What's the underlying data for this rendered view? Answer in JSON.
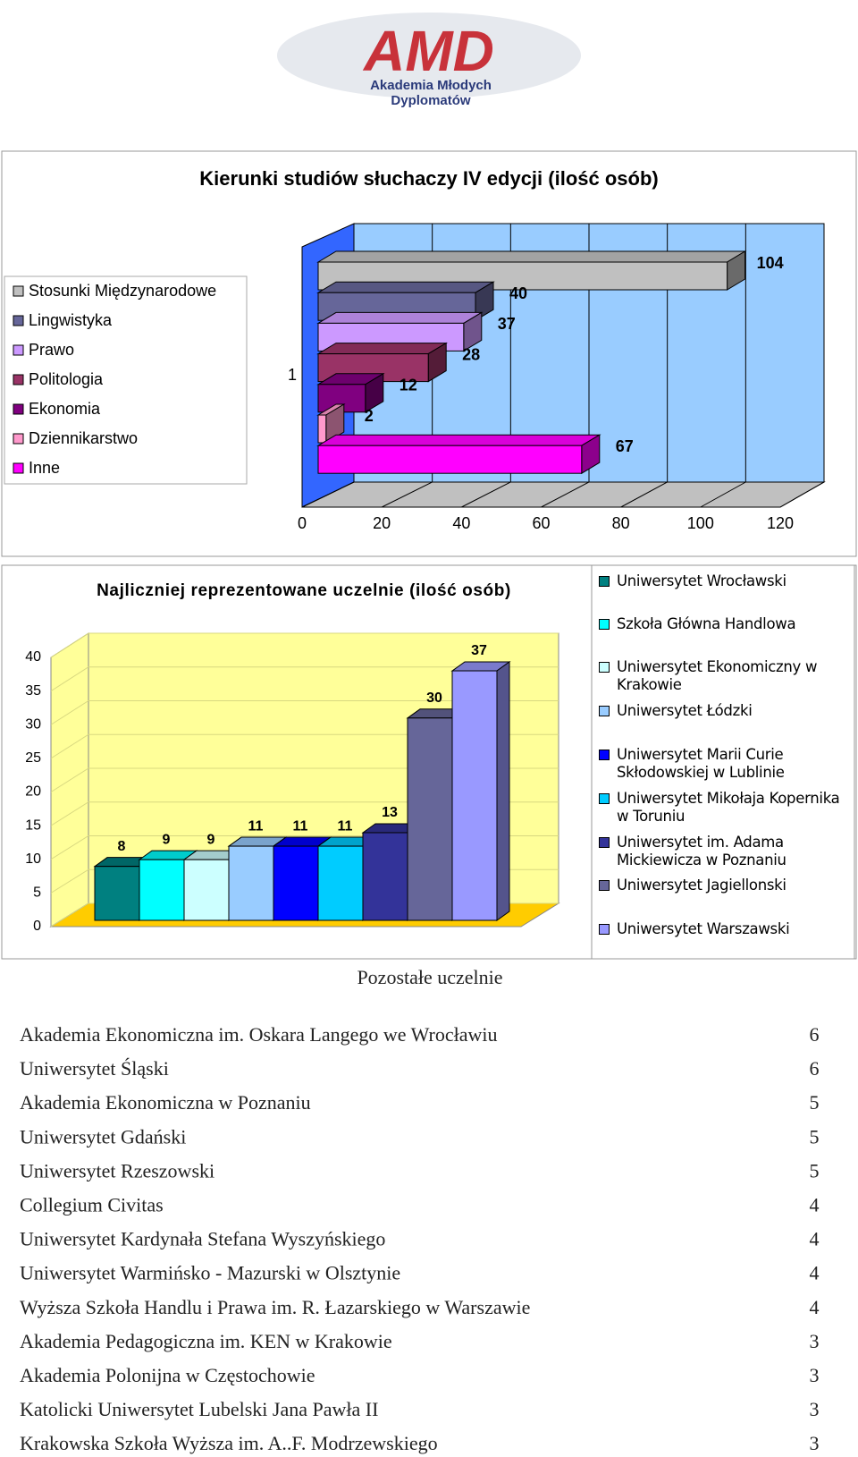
{
  "header": {
    "logo": "AMD",
    "logo_subtitle_1": "Akademia Młodych",
    "logo_subtitle_2": "Dyplomatów"
  },
  "chart_data": [
    {
      "type": "bar",
      "orientation": "horizontal",
      "title": "Kierunki studiów słuchaczy IV edycji (ilość osób)",
      "categories": [
        "1"
      ],
      "series": [
        {
          "name": "Stosunki Międzynarodowe",
          "color": "#c0c0c0",
          "values": [
            104
          ]
        },
        {
          "name": "Lingwistyka",
          "color": "#666699",
          "values": [
            40
          ]
        },
        {
          "name": "Prawo",
          "color": "#cc99ff",
          "values": [
            37
          ]
        },
        {
          "name": "Politologia",
          "color": "#993366",
          "values": [
            28
          ]
        },
        {
          "name": "Ekonomia",
          "color": "#800080",
          "values": [
            12
          ]
        },
        {
          "name": "Dziennikarstwo",
          "color": "#ff99cc",
          "values": [
            2
          ]
        },
        {
          "name": "Inne",
          "color": "#ff00ff",
          "values": [
            67
          ]
        }
      ],
      "xlim": [
        0,
        120
      ],
      "xticks": [
        0,
        20,
        40,
        60,
        80,
        100,
        120
      ],
      "grid": true,
      "legend": "left"
    },
    {
      "type": "bar",
      "orientation": "vertical",
      "title": "Najliczniej reprezentowane uczelnie (ilość osób)",
      "series": [
        {
          "name": "Uniwersytet Wrocławski",
          "color": "#008080",
          "values": [
            8
          ]
        },
        {
          "name": "Szkoła Główna Handlowa",
          "color": "#00ffff",
          "values": [
            9
          ]
        },
        {
          "name": "Uniwersytet Ekonomiczny w Krakowie",
          "color": "#ccffff",
          "values": [
            9
          ]
        },
        {
          "name": "Uniwersytet Łódzki",
          "color": "#99ccff",
          "values": [
            11
          ]
        },
        {
          "name": "Uniwersytet Marii Curie Skłodowskiej w Lublinie",
          "color": "#0000ff",
          "values": [
            11
          ]
        },
        {
          "name": "Uniwersytet Mikołaja Kopernika w Toruniu",
          "color": "#00ccff",
          "values": [
            11
          ]
        },
        {
          "name": "Uniwersytet im. Adama Mickiewicza w Poznaniu",
          "color": "#333399",
          "values": [
            13
          ]
        },
        {
          "name": "Uniwersytet Jagiellonski",
          "color": "#666699",
          "values": [
            30
          ]
        },
        {
          "name": "Uniwersytet Warszawski",
          "color": "#9999ff",
          "values": [
            37
          ]
        }
      ],
      "ylim": [
        0,
        40
      ],
      "yticks": [
        0,
        5,
        10,
        15,
        20,
        25,
        30,
        35,
        40
      ],
      "grid": true,
      "legend": "right"
    }
  ],
  "table": {
    "title": "Pozostałe uczelnie",
    "rows": [
      [
        "Akademia Ekonomiczna im. Oskara Langego we Wrocławiu",
        6
      ],
      [
        "Uniwersytet Śląski",
        6
      ],
      [
        "Akademia Ekonomiczna w Poznaniu",
        5
      ],
      [
        "Uniwersytet Gdański",
        5
      ],
      [
        "Uniwersytet Rzeszowski",
        5
      ],
      [
        "Collegium Civitas",
        4
      ],
      [
        "Uniwersytet Kardynała Stefana Wyszyńskiego",
        4
      ],
      [
        "Uniwersytet Warmińsko - Mazurski w Olsztynie",
        4
      ],
      [
        "Wyższa Szkoła Handlu i Prawa im. R. Łazarskiego w Warszawie",
        4
      ],
      [
        "Akademia Pedagogiczna im. KEN w Krakowie",
        3
      ],
      [
        "Akademia Polonijna w Częstochowie",
        3
      ],
      [
        "Katolicki Uniwersytet Lubelski Jana Pawła II",
        3
      ],
      [
        "Krakowska Szkoła Wyższa im. A..F. Modrzewskiego",
        3
      ]
    ]
  }
}
